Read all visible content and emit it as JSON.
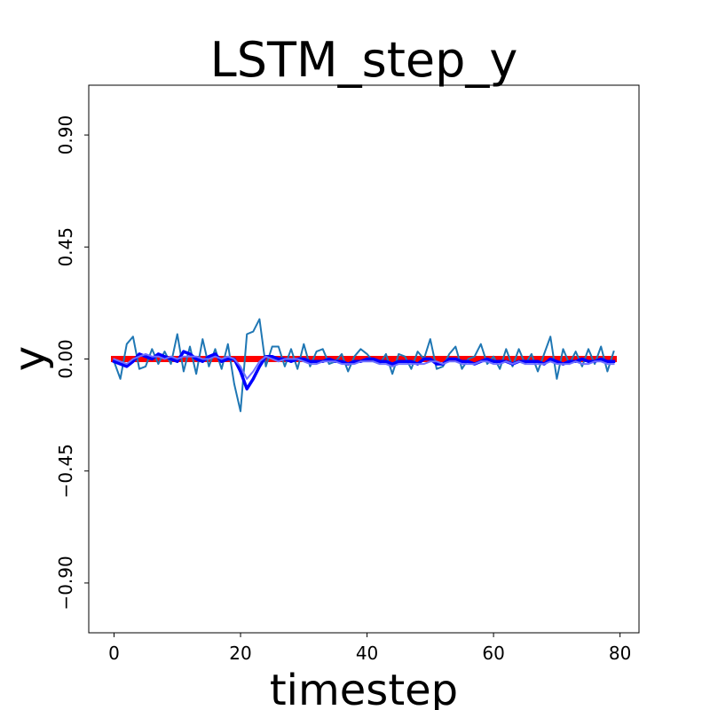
{
  "chart_data": {
    "type": "line",
    "title": "LSTM_step_y",
    "xlabel": "timestep",
    "ylabel": "y",
    "xlim": [
      -4,
      83
    ],
    "ylim": [
      -1.1,
      1.1
    ],
    "xticks": [
      0,
      20,
      40,
      60,
      80
    ],
    "xtick_labels": [
      "0",
      "20",
      "40",
      "60",
      "80"
    ],
    "yticks": [
      -0.9,
      -0.45,
      0,
      0.45,
      0.9
    ],
    "ytick_labels": [
      "−0.90",
      "−0.45",
      "0.00",
      "0.45",
      "0.90"
    ],
    "grid": false,
    "x": [
      0,
      1,
      2,
      3,
      4,
      5,
      6,
      7,
      8,
      9,
      10,
      11,
      12,
      13,
      14,
      15,
      16,
      17,
      18,
      19,
      20,
      21,
      22,
      23,
      24,
      25,
      26,
      27,
      28,
      29,
      30,
      31,
      32,
      33,
      34,
      35,
      36,
      37,
      38,
      39,
      40,
      41,
      42,
      43,
      44,
      45,
      46,
      47,
      48,
      49,
      50,
      51,
      52,
      53,
      54,
      55,
      56,
      57,
      58,
      59,
      60,
      61,
      62,
      63,
      64,
      65,
      66,
      67,
      68,
      69,
      70,
      71,
      72,
      73,
      74,
      75,
      76,
      77,
      78,
      79
    ],
    "series": [
      {
        "color": "#ff0000",
        "width": 7,
        "values": [
          0,
          0,
          0,
          0,
          0,
          0,
          0,
          0,
          0,
          0,
          0,
          0,
          0,
          0,
          0,
          0,
          0,
          0,
          0,
          0,
          0,
          0,
          0,
          0,
          0,
          0,
          0,
          0,
          0,
          0,
          0,
          0,
          0,
          0,
          0,
          0,
          0,
          0,
          0,
          0,
          0,
          0,
          0,
          0,
          0,
          0,
          0,
          0,
          0,
          0,
          0,
          0,
          0,
          0,
          0,
          0,
          0,
          0,
          0,
          0,
          0,
          0,
          0,
          0,
          0,
          0,
          0,
          0,
          0,
          0,
          0,
          0,
          0,
          0,
          0,
          0,
          0,
          0,
          0,
          0
        ]
      },
      {
        "color": "#1f77b4",
        "width": 2,
        "values": [
          -0.01,
          -0.08,
          0.06,
          0.09,
          -0.04,
          -0.03,
          0.04,
          -0.02,
          0.03,
          -0.02,
          0.1,
          -0.05,
          0.05,
          -0.06,
          0.08,
          -0.03,
          0.04,
          -0.04,
          0.06,
          -0.1,
          -0.21,
          0.1,
          0.11,
          0.16,
          -0.03,
          0.05,
          0.05,
          -0.03,
          0.04,
          -0.04,
          0.06,
          -0.03,
          0.03,
          0.04,
          -0.02,
          -0.01,
          0.02,
          -0.05,
          0.01,
          0.04,
          0.02,
          -0.01,
          -0.02,
          0.02,
          -0.06,
          0.02,
          0.01,
          -0.04,
          0.03,
          0,
          0.08,
          -0.04,
          -0.03,
          0.02,
          0.05,
          -0.04,
          0,
          0.01,
          0.06,
          -0.02,
          0.01,
          -0.04,
          0.04,
          -0.03,
          0.04,
          -0.02,
          0.02,
          -0.05,
          0.02,
          0.09,
          -0.08,
          0.04,
          -0.02,
          0.03,
          -0.03,
          0.04,
          -0.02,
          0.05,
          -0.05,
          0.03
        ]
      },
      {
        "color": "#0000ff",
        "width": 3.5,
        "values": [
          -0.01,
          -0.02,
          -0.03,
          -0.01,
          0.02,
          0.01,
          0,
          0.02,
          0.01,
          0,
          -0.01,
          0.03,
          0.02,
          0,
          -0.01,
          0.01,
          0.02,
          -0.01,
          0,
          0,
          -0.05,
          -0.12,
          -0.08,
          -0.03,
          0.01,
          0.01,
          0,
          0,
          -0.01,
          0,
          0,
          -0.01,
          -0.01,
          -0.01,
          0,
          -0.01,
          -0.01,
          -0.02,
          -0.01,
          -0.01,
          0,
          0,
          -0.01,
          -0.01,
          -0.02,
          -0.01,
          -0.01,
          -0.01,
          -0.02,
          0,
          0,
          -0.02,
          -0.02,
          0,
          0,
          -0.01,
          -0.01,
          -0.02,
          -0.01,
          0,
          -0.01,
          -0.01,
          -0.01,
          -0.02,
          -0.01,
          -0.01,
          -0.01,
          -0.01,
          -0.02,
          0,
          -0.01,
          -0.02,
          -0.01,
          -0.01,
          0,
          -0.01,
          -0.01,
          0,
          -0.01,
          -0.01
        ]
      },
      {
        "color": "#6f70ff",
        "width": 2,
        "values": [
          0,
          -0.01,
          -0.02,
          0,
          0.01,
          0.02,
          0.01,
          0.01,
          0,
          0.01,
          0,
          0.01,
          0.01,
          0.01,
          0,
          0,
          0.01,
          0,
          0.01,
          0,
          -0.03,
          -0.08,
          -0.05,
          -0.01,
          0.01,
          0,
          -0.01,
          0,
          0,
          0,
          -0.01,
          -0.02,
          -0.02,
          -0.01,
          -0.01,
          -0.01,
          -0.02,
          -0.02,
          -0.02,
          -0.01,
          -0.01,
          -0.01,
          -0.02,
          -0.02,
          -0.03,
          -0.02,
          -0.02,
          -0.02,
          -0.02,
          -0.02,
          -0.01,
          -0.01,
          -0.02,
          -0.01,
          -0.01,
          -0.02,
          -0.02,
          -0.02,
          -0.01,
          -0.01,
          -0.02,
          -0.02,
          -0.01,
          -0.02,
          -0.01,
          -0.02,
          -0.02,
          -0.02,
          -0.02,
          -0.01,
          -0.02,
          -0.02,
          -0.02,
          -0.01,
          -0.02,
          -0.02,
          -0.01,
          -0.01,
          -0.02,
          -0.02
        ]
      }
    ]
  }
}
